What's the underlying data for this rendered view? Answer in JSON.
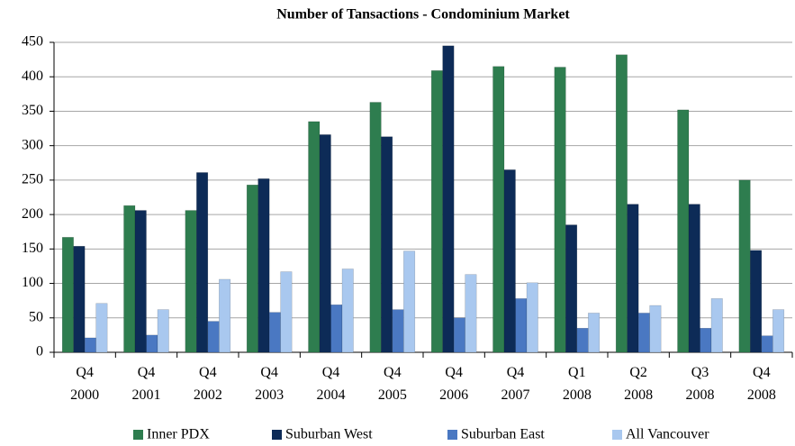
{
  "chart_data": {
    "type": "bar",
    "title": "Number of Tansactions - Condominium Market",
    "categories": [
      "Q4 2000",
      "Q4 2001",
      "Q4 2002",
      "Q4 2003",
      "Q4 2004",
      "Q4 2005",
      "Q4 2006",
      "Q4 2007",
      "Q1 2008",
      "Q2 2008",
      "Q3 2008",
      "Q4 2008"
    ],
    "series": [
      {
        "name": "Inner PDX",
        "color": "#2e7d4f",
        "values": [
          167,
          213,
          206,
          243,
          335,
          363,
          409,
          415,
          414,
          432,
          352,
          250
        ]
      },
      {
        "name": "Suburban West",
        "color": "#0d2b57",
        "values": [
          154,
          206,
          261,
          252,
          316,
          313,
          445,
          265,
          185,
          215,
          215,
          148
        ]
      },
      {
        "name": "Suburban East",
        "color": "#4a78c2",
        "values": [
          21,
          25,
          45,
          58,
          69,
          62,
          50,
          78,
          35,
          57,
          35,
          24
        ]
      },
      {
        "name": "All Vancouver",
        "color": "#a9c8ef",
        "values": [
          71,
          62,
          106,
          117,
          121,
          147,
          113,
          101,
          57,
          68,
          78,
          62
        ]
      }
    ],
    "ylim": [
      0,
      450
    ],
    "yticks": [
      0,
      50,
      100,
      150,
      200,
      250,
      300,
      350,
      400,
      450
    ],
    "grid": true,
    "legend": "bottom"
  }
}
